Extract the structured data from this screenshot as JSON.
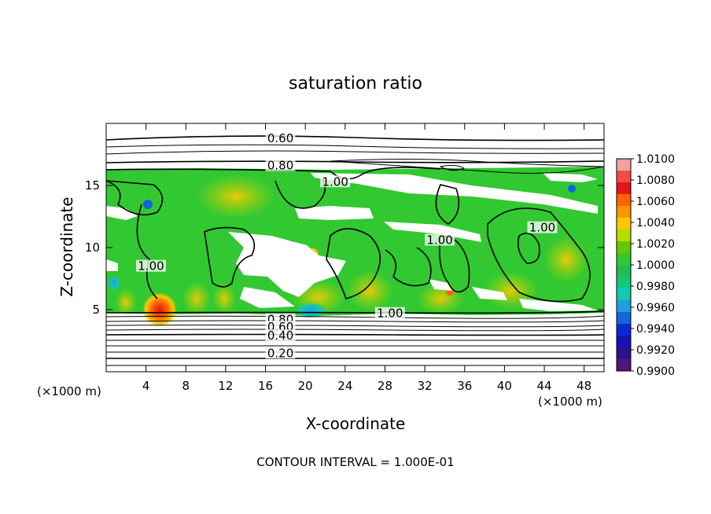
{
  "chart_data": {
    "type": "heatmap",
    "title": "saturation ratio",
    "xlabel": "X-coordinate",
    "ylabel": "Z-coordinate",
    "x_unit_label": "(×1000 m)",
    "y_unit_label": "(×1000 m)",
    "xlim": [
      0,
      50
    ],
    "ylim": [
      0,
      20
    ],
    "x_ticks": [
      "4",
      "8",
      "12",
      "16",
      "20",
      "24",
      "28",
      "32",
      "36",
      "40",
      "44",
      "48"
    ],
    "y_ticks": [
      "5",
      "10",
      "15"
    ],
    "footer": "CONTOUR INTERVAL = 1.000E-01",
    "colorbar": {
      "labels": [
        "1.0100",
        "1.0080",
        "1.0060",
        "1.0040",
        "1.0020",
        "1.0000",
        "0.9980",
        "0.9960",
        "0.9940",
        "0.9920",
        "0.9900"
      ],
      "colors": [
        "#f2a0a0",
        "#f24a4a",
        "#e61414",
        "#ff6400",
        "#ff9600",
        "#ffc800",
        "#b4dc00",
        "#64c800",
        "#32c832",
        "#1ebe50",
        "#14c878",
        "#14c8b4",
        "#1ea0dc",
        "#1464dc",
        "#0a28d2",
        "#1414b4",
        "#28148c",
        "#50147a"
      ]
    },
    "contour_labels": [
      {
        "text": "0.60",
        "x": 17.5,
        "y": 18.8
      },
      {
        "text": "0.80",
        "x": 17.5,
        "y": 16.6
      },
      {
        "text": "1.00",
        "x": 23.0,
        "y": 15.3
      },
      {
        "text": "1.00",
        "x": 33.5,
        "y": 10.6
      },
      {
        "text": "1.00",
        "x": 43.8,
        "y": 11.6
      },
      {
        "text": "1.00",
        "x": 4.5,
        "y": 8.5
      },
      {
        "text": "1.00",
        "x": 28.5,
        "y": 4.7
      },
      {
        "text": "0.80",
        "x": 17.5,
        "y": 4.2
      },
      {
        "text": "0.60",
        "x": 17.5,
        "y": 3.6
      },
      {
        "text": "0.40",
        "x": 17.5,
        "y": 2.9
      },
      {
        "text": "0.20",
        "x": 17.5,
        "y": 1.5
      }
    ]
  }
}
